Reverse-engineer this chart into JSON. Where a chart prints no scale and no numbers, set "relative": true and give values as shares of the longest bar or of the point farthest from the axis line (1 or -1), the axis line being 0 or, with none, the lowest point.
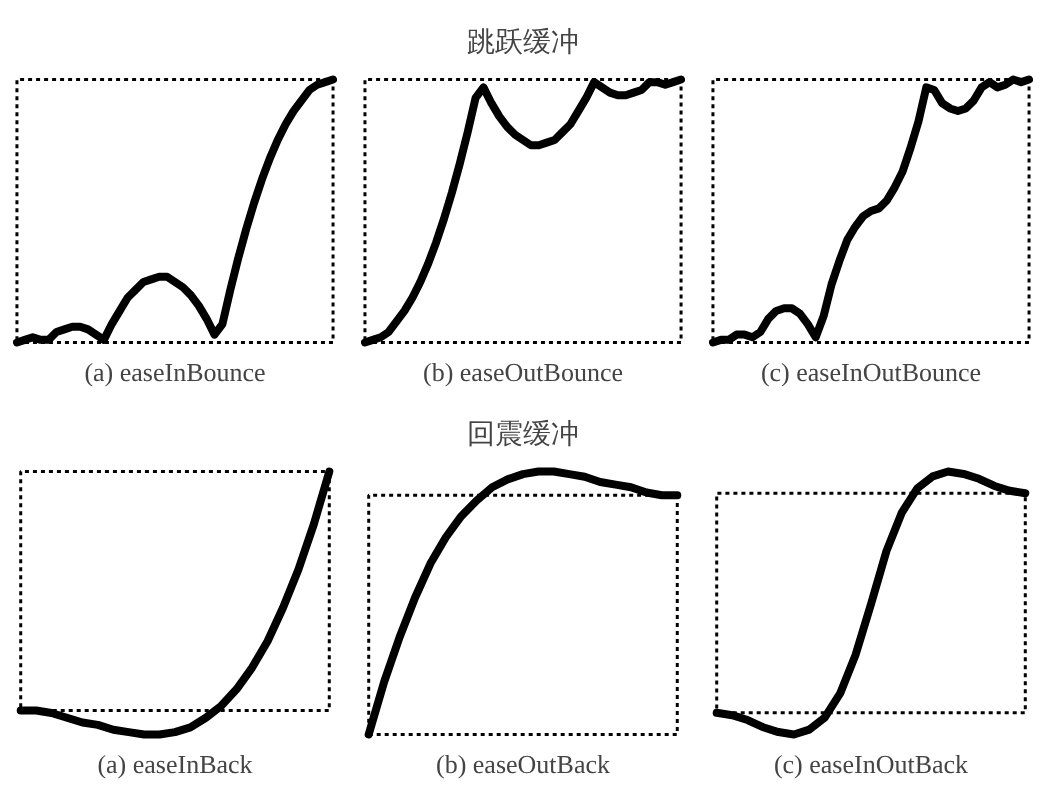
{
  "chart_data": [
    {
      "type": "line",
      "relative": true,
      "xlabel": "(a) easeInBounce",
      "categories": [
        null,
        null,
        null,
        null,
        null,
        null,
        null,
        null,
        null,
        null,
        null,
        null,
        null,
        null,
        null,
        null,
        null,
        null,
        null,
        null,
        null,
        null,
        null,
        null,
        null,
        null,
        null,
        null,
        null,
        null,
        null,
        null,
        null,
        null,
        null,
        null,
        null,
        null,
        null,
        null,
        null
      ],
      "series": [
        {
          "color": "#000000",
          "values": [
            0,
            0.01,
            0.02,
            0.01,
            0.01,
            0.04,
            0.05,
            0.06,
            0.06,
            0.05,
            0.03,
            0.01,
            0.07,
            0.12,
            0.17,
            0.2,
            0.23,
            0.24,
            0.25,
            0.25,
            0.23,
            0.21,
            0.18,
            0.14,
            0.09,
            0.03,
            0.07,
            0.2,
            0.32,
            0.43,
            0.53,
            0.62,
            0.7,
            0.77,
            0.83,
            0.88,
            0.92,
            0.96,
            0.98,
            0.99,
            1.0
          ]
        }
      ]
    },
    {
      "type": "line",
      "relative": true,
      "title": "跳跃缓冲",
      "xlabel": "(b) easeOutBounce",
      "categories": [
        null,
        null,
        null,
        null,
        null,
        null,
        null,
        null,
        null,
        null,
        null,
        null,
        null,
        null,
        null,
        null,
        null,
        null,
        null,
        null,
        null,
        null,
        null,
        null,
        null,
        null,
        null,
        null,
        null,
        null,
        null,
        null,
        null,
        null,
        null,
        null,
        null,
        null,
        null,
        null,
        null
      ],
      "series": [
        {
          "color": "#000000",
          "values": [
            0,
            0.01,
            0.02,
            0.04,
            0.08,
            0.12,
            0.17,
            0.23,
            0.3,
            0.38,
            0.47,
            0.57,
            0.68,
            0.8,
            0.93,
            0.97,
            0.91,
            0.86,
            0.82,
            0.79,
            0.77,
            0.75,
            0.75,
            0.76,
            0.77,
            0.8,
            0.83,
            0.88,
            0.93,
            0.99,
            0.97,
            0.95,
            0.94,
            0.94,
            0.95,
            0.96,
            0.99,
            0.99,
            0.98,
            0.99,
            1.0
          ]
        }
      ]
    },
    {
      "type": "line",
      "relative": true,
      "xlabel": "(c) easeInOutBounce",
      "categories": [
        null,
        null,
        null,
        null,
        null,
        null,
        null,
        null,
        null,
        null,
        null,
        null,
        null,
        null,
        null,
        null,
        null,
        null,
        null,
        null,
        null,
        null,
        null,
        null,
        null,
        null,
        null,
        null,
        null,
        null,
        null,
        null,
        null,
        null,
        null,
        null,
        null,
        null,
        null,
        null,
        null
      ],
      "series": [
        {
          "color": "#000000",
          "values": [
            0,
            0.01,
            0.01,
            0.03,
            0.03,
            0.02,
            0.04,
            0.09,
            0.12,
            0.13,
            0.13,
            0.11,
            0.07,
            0.02,
            0.1,
            0.22,
            0.31,
            0.39,
            0.44,
            0.48,
            0.5,
            0.51,
            0.54,
            0.59,
            0.65,
            0.74,
            0.84,
            0.97,
            0.96,
            0.91,
            0.89,
            0.88,
            0.89,
            0.92,
            0.97,
            0.99,
            0.97,
            0.98,
            1.0,
            0.99,
            1.0
          ]
        }
      ]
    },
    {
      "type": "line",
      "relative": true,
      "xlabel": "(a) easeInBack",
      "categories": [
        null,
        null,
        null,
        null,
        null,
        null,
        null,
        null,
        null,
        null,
        null,
        null,
        null,
        null,
        null,
        null,
        null,
        null,
        null,
        null,
        null
      ],
      "series": [
        {
          "color": "#000000",
          "values": [
            0,
            0,
            -0.01,
            -0.03,
            -0.05,
            -0.06,
            -0.08,
            -0.09,
            -0.1,
            -0.1,
            -0.09,
            -0.07,
            -0.03,
            0.02,
            0.09,
            0.18,
            0.29,
            0.43,
            0.59,
            0.78,
            1.0
          ]
        }
      ]
    },
    {
      "type": "line",
      "relative": true,
      "title": "回震缓冲",
      "xlabel": "(b) easeOutBack",
      "categories": [
        null,
        null,
        null,
        null,
        null,
        null,
        null,
        null,
        null,
        null,
        null,
        null,
        null,
        null,
        null,
        null,
        null,
        null,
        null,
        null,
        null
      ],
      "series": [
        {
          "color": "#000000",
          "values": [
            0,
            0.2,
            0.37,
            0.52,
            0.65,
            0.75,
            0.83,
            0.89,
            0.94,
            0.97,
            0.99,
            1.0,
            1.0,
            0.99,
            0.98,
            0.96,
            0.95,
            0.94,
            0.92,
            0.91,
            0.91
          ]
        }
      ]
    },
    {
      "type": "line",
      "relative": true,
      "xlabel": "(c) easeInOutBack",
      "categories": [
        null,
        null,
        null,
        null,
        null,
        null,
        null,
        null,
        null,
        null,
        null,
        null,
        null,
        null,
        null,
        null,
        null,
        null,
        null,
        null,
        null
      ],
      "series": [
        {
          "color": "#000000",
          "values": [
            0,
            -0.01,
            -0.03,
            -0.06,
            -0.08,
            -0.09,
            -0.07,
            -0.02,
            0.08,
            0.24,
            0.45,
            0.67,
            0.83,
            0.93,
            0.98,
            1.0,
            0.99,
            0.97,
            0.94,
            0.92,
            0.91
          ]
        }
      ]
    }
  ]
}
